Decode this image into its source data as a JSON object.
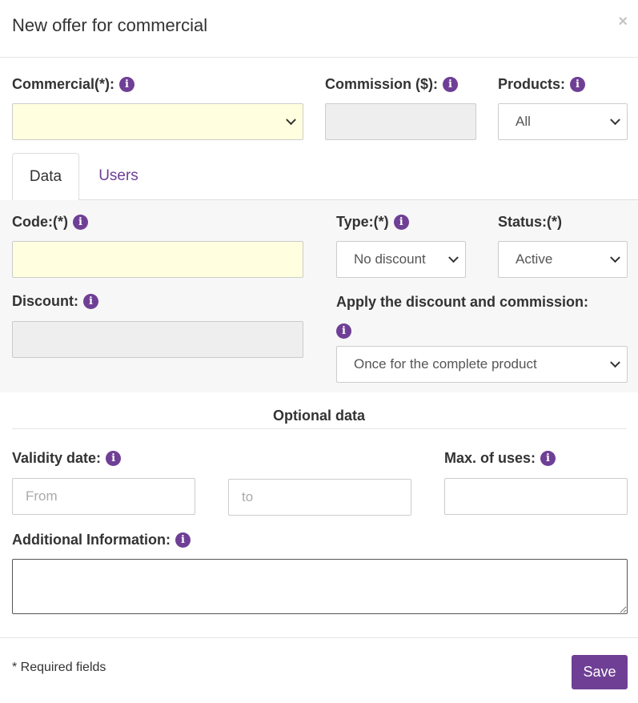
{
  "dialog": {
    "title": "New offer for commercial",
    "close_symbol": "×"
  },
  "top_fields": {
    "commercial_label": "Commercial(*):",
    "commission_label": "Commission ($):",
    "products_label": "Products:",
    "products_value": "All",
    "commercial_value": "",
    "commission_value": ""
  },
  "tabs": [
    {
      "label": "Data",
      "active": true
    },
    {
      "label": "Users",
      "active": false
    }
  ],
  "data_tab": {
    "code_label": "Code:(*)",
    "type_label": "Type:(*)",
    "type_value": "No discount",
    "status_label": "Status:(*)",
    "status_value": "Active",
    "discount_label": "Discount:",
    "apply_label": "Apply the discount and commission:",
    "apply_value": "Once for the complete product"
  },
  "optional": {
    "section_title": "Optional data",
    "validity_label": "Validity date:",
    "from_placeholder": "From",
    "to_placeholder": "to",
    "max_uses_label": "Max. of uses:",
    "additional_label": "Additional Information:"
  },
  "footer": {
    "required_note": "* Required fields",
    "save_label": "Save"
  },
  "icons": {
    "info": "i",
    "info_color": "#6f3f95"
  },
  "colors": {
    "accent": "#6f3f95",
    "required_bg": "#ffffe0",
    "disabled_bg": "#eeeeee"
  }
}
